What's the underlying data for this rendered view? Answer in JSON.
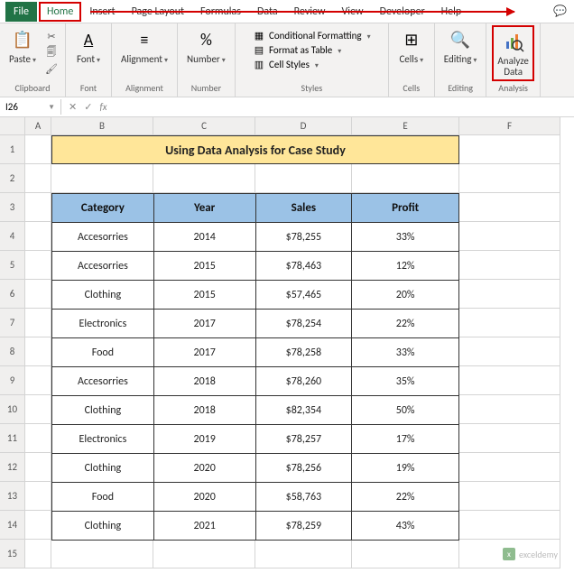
{
  "menu": {
    "items": [
      "File",
      "Home",
      "Insert",
      "Page Layout",
      "Formulas",
      "Data",
      "Review",
      "View",
      "Developer",
      "Help"
    ],
    "active_index": 1,
    "highlight_index": 1
  },
  "ribbon": {
    "clipboard": {
      "paste": "Paste",
      "label": "Clipboard"
    },
    "font": {
      "button": "Font",
      "label": "Font"
    },
    "alignment": {
      "button": "Alignment",
      "label": "Alignment"
    },
    "number": {
      "button": "Number",
      "label": "Number"
    },
    "styles": {
      "cond_format": "Conditional Formatting",
      "format_table": "Format as Table",
      "cell_styles": "Cell Styles",
      "label": "Styles"
    },
    "cells": {
      "button": "Cells",
      "label": "Cells"
    },
    "editing": {
      "button": "Editing",
      "label": "Editing"
    },
    "analysis": {
      "button_line1": "Analyze",
      "button_line2": "Data",
      "label": "Analysis",
      "highlight": true
    }
  },
  "name_box": "I26",
  "formula": "",
  "columns": [
    "A",
    "B",
    "C",
    "D",
    "E",
    "F"
  ],
  "rows": [
    "1",
    "2",
    "3",
    "4",
    "5",
    "6",
    "7",
    "8",
    "9",
    "10",
    "11",
    "12",
    "13",
    "14",
    "15"
  ],
  "title_banner": "Using Data Analysis for Case Study",
  "table": {
    "headers": [
      "Category",
      "Year",
      "Sales",
      "Profit"
    ],
    "data": [
      [
        "Accesorries",
        "2014",
        "$78,255",
        "33%"
      ],
      [
        "Accesorries",
        "2015",
        "$78,463",
        "12%"
      ],
      [
        "Clothing",
        "2015",
        "$57,465",
        "20%"
      ],
      [
        "Electronics",
        "2017",
        "$78,254",
        "22%"
      ],
      [
        "Food",
        "2017",
        "$78,258",
        "33%"
      ],
      [
        "Accesorries",
        "2018",
        "$78,260",
        "35%"
      ],
      [
        "Clothing",
        "2018",
        "$82,354",
        "50%"
      ],
      [
        "Electronics",
        "2019",
        "$78,257",
        "17%"
      ],
      [
        "Clothing",
        "2020",
        "$78,256",
        "19%"
      ],
      [
        "Food",
        "2020",
        "$58,763",
        "22%"
      ],
      [
        "Clothing",
        "2021",
        "$78,259",
        "43%"
      ]
    ],
    "header_bg": "#9bc2e6",
    "banner_bg": "#ffe699"
  },
  "watermark": "exceldemy",
  "colors": {
    "excel_green": "#217346",
    "highlight_red": "#d40000",
    "ribbon_bg": "#f3f2f1",
    "grid_border": "#d4d4d4"
  }
}
